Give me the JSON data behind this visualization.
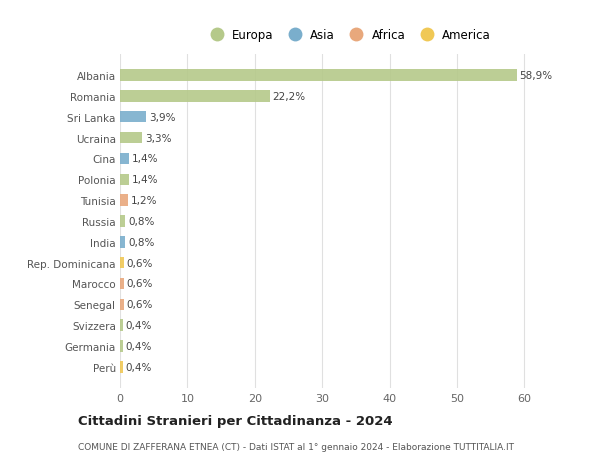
{
  "title": "Cittadini Stranieri per Cittadinanza - 2024",
  "subtitle": "COMUNE DI ZAFFERANA ETNEA (CT) - Dati ISTAT al 1° gennaio 2024 - Elaborazione TUTTITALIA.IT",
  "categories": [
    "Albania",
    "Romania",
    "Sri Lanka",
    "Ucraina",
    "Cina",
    "Polonia",
    "Tunisia",
    "Russia",
    "India",
    "Rep. Dominicana",
    "Marocco",
    "Senegal",
    "Svizzera",
    "Germania",
    "Perù"
  ],
  "values": [
    58.9,
    22.2,
    3.9,
    3.3,
    1.4,
    1.4,
    1.2,
    0.8,
    0.8,
    0.6,
    0.6,
    0.6,
    0.4,
    0.4,
    0.4
  ],
  "labels": [
    "58,9%",
    "22,2%",
    "3,9%",
    "3,3%",
    "1,4%",
    "1,4%",
    "1,2%",
    "0,8%",
    "0,8%",
    "0,6%",
    "0,6%",
    "0,6%",
    "0,4%",
    "0,4%",
    "0,4%"
  ],
  "continents": [
    "Europa",
    "Europa",
    "Asia",
    "Europa",
    "Asia",
    "Europa",
    "Africa",
    "Europa",
    "Asia",
    "America",
    "Africa",
    "Africa",
    "Europa",
    "Europa",
    "America"
  ],
  "continent_colors": {
    "Europa": "#b5c98a",
    "Asia": "#7aaecc",
    "Africa": "#e8a87c",
    "America": "#f0c855"
  },
  "legend_order": [
    "Europa",
    "Asia",
    "Africa",
    "America"
  ],
  "background_color": "#ffffff",
  "grid_color": "#e0e0e0",
  "xlim": [
    0,
    65
  ],
  "xticks": [
    0,
    10,
    20,
    30,
    40,
    50,
    60
  ]
}
